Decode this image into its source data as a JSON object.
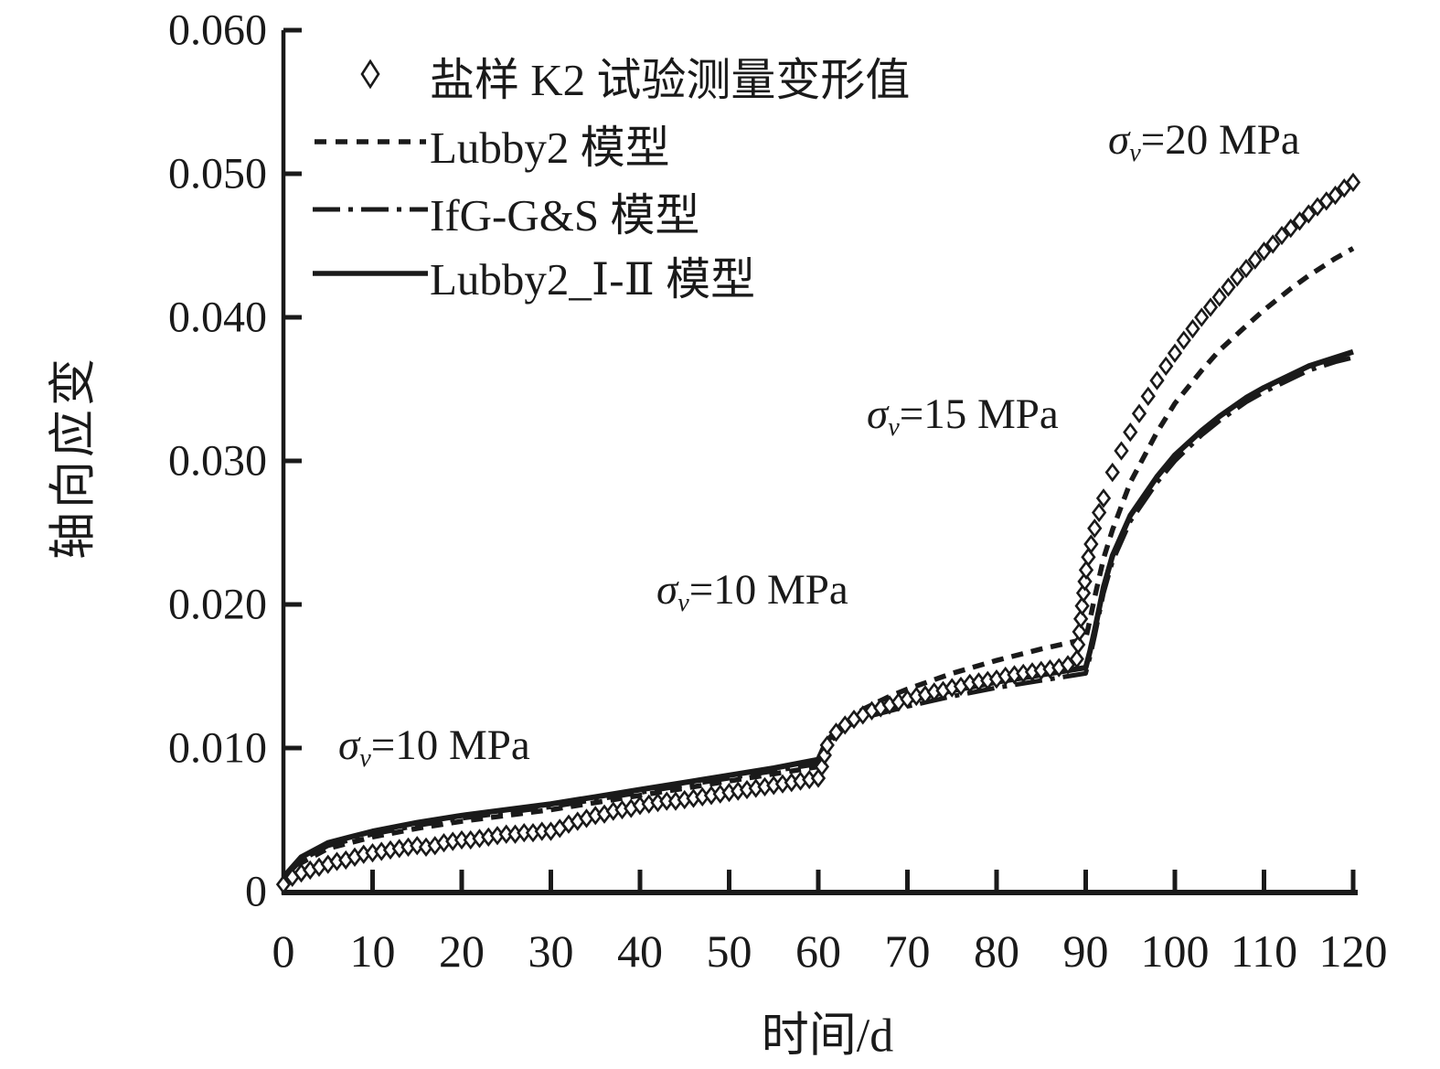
{
  "colors": {
    "ink": "#1a1a1a",
    "background": "#ffffff"
  },
  "legend": {
    "items": [
      {
        "label": "盐样 K2 试验测量变形值",
        "marker": "open-diamond"
      },
      {
        "label": "Lubby2 模型",
        "marker": "dashed-line"
      },
      {
        "label": "IfG-G&S 模型",
        "marker": "dashdot-line"
      },
      {
        "label": "Lubby2_Ⅰ-Ⅱ 模型",
        "marker": "solid-line"
      }
    ]
  },
  "annotations": [
    {
      "sigma": "σ",
      "sub": "v",
      "rest": "=10 MPa"
    },
    {
      "sigma": "σ",
      "sub": "v",
      "rest": "=10 MPa"
    },
    {
      "sigma": "σ",
      "sub": "v",
      "rest": "=15 MPa"
    },
    {
      "sigma": "σ",
      "sub": "v",
      "rest": "=20 MPa"
    }
  ],
  "chart_data": {
    "type": "line",
    "title": "",
    "xlabel": "时间/d",
    "ylabel": "轴向应变",
    "xlim": [
      0,
      120
    ],
    "ylim": [
      0,
      0.06
    ],
    "grid": false,
    "legend_position": "upper-left-inside",
    "x_ticks": [
      {
        "v": 0,
        "label": "0"
      },
      {
        "v": 10,
        "label": "10"
      },
      {
        "v": 20,
        "label": "20"
      },
      {
        "v": 30,
        "label": "30"
      },
      {
        "v": 40,
        "label": "40"
      },
      {
        "v": 50,
        "label": "50"
      },
      {
        "v": 60,
        "label": "60"
      },
      {
        "v": 70,
        "label": "70"
      },
      {
        "v": 80,
        "label": "80"
      },
      {
        "v": 90,
        "label": "90"
      },
      {
        "v": 100,
        "label": "100"
      },
      {
        "v": 110,
        "label": "110"
      },
      {
        "v": 120,
        "label": "120"
      }
    ],
    "y_ticks": [
      {
        "v": 0,
        "label": "0"
      },
      {
        "v": 0.01,
        "label": "0.010"
      },
      {
        "v": 0.02,
        "label": "0.020"
      },
      {
        "v": 0.03,
        "label": "0.030"
      },
      {
        "v": 0.04,
        "label": "0.040"
      },
      {
        "v": 0.05,
        "label": "0.050"
      },
      {
        "v": 0.06,
        "label": "0.060"
      }
    ],
    "series": [
      {
        "name": "Lubby2 模型",
        "style": "dashed",
        "marker": "none",
        "points": [
          [
            0,
            0.0008
          ],
          [
            2,
            0.002
          ],
          [
            5,
            0.003
          ],
          [
            10,
            0.0038
          ],
          [
            15,
            0.0044
          ],
          [
            20,
            0.0049
          ],
          [
            25,
            0.0053
          ],
          [
            30,
            0.0057
          ],
          [
            35,
            0.0062
          ],
          [
            40,
            0.0067
          ],
          [
            45,
            0.0072
          ],
          [
            50,
            0.0077
          ],
          [
            55,
            0.0082
          ],
          [
            60,
            0.0087
          ],
          [
            60.5,
            0.0095
          ],
          [
            61,
            0.01
          ],
          [
            62,
            0.011
          ],
          [
            63,
            0.0117
          ],
          [
            65,
            0.0127
          ],
          [
            68,
            0.0136
          ],
          [
            70,
            0.0141
          ],
          [
            75,
            0.0152
          ],
          [
            80,
            0.0161
          ],
          [
            85,
            0.0169
          ],
          [
            90,
            0.0176
          ],
          [
            90.5,
            0.019
          ],
          [
            91,
            0.0205
          ],
          [
            92,
            0.0232
          ],
          [
            93,
            0.0252
          ],
          [
            95,
            0.0285
          ],
          [
            98,
            0.032
          ],
          [
            100,
            0.034
          ],
          [
            103,
            0.0363
          ],
          [
            105,
            0.0377
          ],
          [
            108,
            0.0394
          ],
          [
            110,
            0.0405
          ],
          [
            113,
            0.042
          ],
          [
            115,
            0.0429
          ],
          [
            118,
            0.0441
          ],
          [
            120,
            0.0448
          ]
        ]
      },
      {
        "name": "IfG-G&S 模型",
        "style": "dashdot",
        "marker": "none",
        "points": [
          [
            0,
            0.0009
          ],
          [
            2,
            0.0022
          ],
          [
            5,
            0.0032
          ],
          [
            10,
            0.004
          ],
          [
            15,
            0.0046
          ],
          [
            20,
            0.0051
          ],
          [
            25,
            0.0055
          ],
          [
            30,
            0.0059
          ],
          [
            35,
            0.0064
          ],
          [
            40,
            0.0069
          ],
          [
            45,
            0.0074
          ],
          [
            50,
            0.0079
          ],
          [
            55,
            0.0084
          ],
          [
            60,
            0.0089
          ],
          [
            60.5,
            0.0096
          ],
          [
            61,
            0.0102
          ],
          [
            62,
            0.0109
          ],
          [
            63,
            0.0114
          ],
          [
            65,
            0.0121
          ],
          [
            70,
            0.0129
          ],
          [
            75,
            0.0136
          ],
          [
            80,
            0.0142
          ],
          [
            85,
            0.0147
          ],
          [
            90,
            0.0152
          ],
          [
            90.5,
            0.0164
          ],
          [
            91,
            0.0178
          ],
          [
            92,
            0.0208
          ],
          [
            93,
            0.023
          ],
          [
            95,
            0.0258
          ],
          [
            98,
            0.0285
          ],
          [
            100,
            0.03
          ],
          [
            103,
            0.0318
          ],
          [
            105,
            0.0328
          ],
          [
            108,
            0.0341
          ],
          [
            110,
            0.0348
          ],
          [
            113,
            0.0357
          ],
          [
            115,
            0.0363
          ],
          [
            118,
            0.0369
          ],
          [
            120,
            0.0372
          ]
        ]
      },
      {
        "name": "Lubby2_Ⅰ-Ⅱ 模型",
        "style": "solid",
        "marker": "none",
        "points": [
          [
            0,
            0.001
          ],
          [
            2,
            0.0024
          ],
          [
            5,
            0.0034
          ],
          [
            10,
            0.0042
          ],
          [
            15,
            0.0048
          ],
          [
            20,
            0.0053
          ],
          [
            25,
            0.0057
          ],
          [
            30,
            0.0061
          ],
          [
            35,
            0.0066
          ],
          [
            40,
            0.0071
          ],
          [
            45,
            0.0076
          ],
          [
            50,
            0.0081
          ],
          [
            55,
            0.0086
          ],
          [
            60,
            0.0092
          ],
          [
            60.5,
            0.0099
          ],
          [
            61,
            0.0105
          ],
          [
            62,
            0.0112
          ],
          [
            63,
            0.0117
          ],
          [
            65,
            0.0124
          ],
          [
            70,
            0.0133
          ],
          [
            75,
            0.014
          ],
          [
            80,
            0.0146
          ],
          [
            85,
            0.0151
          ],
          [
            90,
            0.0156
          ],
          [
            90.5,
            0.0168
          ],
          [
            91,
            0.0182
          ],
          [
            92,
            0.0212
          ],
          [
            93,
            0.0234
          ],
          [
            95,
            0.0262
          ],
          [
            98,
            0.0289
          ],
          [
            100,
            0.0304
          ],
          [
            103,
            0.0321
          ],
          [
            105,
            0.0331
          ],
          [
            108,
            0.0344
          ],
          [
            110,
            0.0351
          ],
          [
            113,
            0.036
          ],
          [
            115,
            0.0366
          ],
          [
            118,
            0.0372
          ],
          [
            120,
            0.0376
          ]
        ]
      },
      {
        "name": "盐样 K2 试验测量变形值",
        "style": "none",
        "marker": "open-diamond",
        "points": [
          [
            0,
            0.0005
          ],
          [
            1,
            0.001
          ],
          [
            2,
            0.0013
          ],
          [
            3,
            0.0015
          ],
          [
            4,
            0.0017
          ],
          [
            5,
            0.0019
          ],
          [
            6,
            0.0021
          ],
          [
            7,
            0.0022
          ],
          [
            8,
            0.0024
          ],
          [
            9,
            0.0026
          ],
          [
            10,
            0.0027
          ],
          [
            11,
            0.0028
          ],
          [
            12,
            0.0029
          ],
          [
            13,
            0.003
          ],
          [
            14,
            0.0031
          ],
          [
            15,
            0.0032
          ],
          [
            16,
            0.0031
          ],
          [
            17,
            0.0032
          ],
          [
            18,
            0.0034
          ],
          [
            19,
            0.0035
          ],
          [
            20,
            0.0036
          ],
          [
            21,
            0.0036
          ],
          [
            22,
            0.0037
          ],
          [
            23,
            0.0038
          ],
          [
            24,
            0.0039
          ],
          [
            25,
            0.004
          ],
          [
            26,
            0.004
          ],
          [
            27,
            0.0041
          ],
          [
            28,
            0.0041
          ],
          [
            29,
            0.0042
          ],
          [
            30,
            0.0042
          ],
          [
            31,
            0.0044
          ],
          [
            32,
            0.0047
          ],
          [
            33,
            0.0049
          ],
          [
            34,
            0.0051
          ],
          [
            35,
            0.0053
          ],
          [
            36,
            0.0054
          ],
          [
            37,
            0.0056
          ],
          [
            38,
            0.0057
          ],
          [
            39,
            0.0058
          ],
          [
            40,
            0.006
          ],
          [
            41,
            0.0061
          ],
          [
            42,
            0.0062
          ],
          [
            43,
            0.0063
          ],
          [
            44,
            0.0063
          ],
          [
            45,
            0.0064
          ],
          [
            46,
            0.0065
          ],
          [
            47,
            0.0066
          ],
          [
            48,
            0.0067
          ],
          [
            49,
            0.0068
          ],
          [
            50,
            0.0069
          ],
          [
            51,
            0.007
          ],
          [
            52,
            0.0071
          ],
          [
            53,
            0.0072
          ],
          [
            54,
            0.0073
          ],
          [
            55,
            0.0074
          ],
          [
            56,
            0.0075
          ],
          [
            57,
            0.0076
          ],
          [
            58,
            0.0077
          ],
          [
            59,
            0.0078
          ],
          [
            60,
            0.0079
          ],
          [
            60.4,
            0.0087
          ],
          [
            60.7,
            0.0095
          ],
          [
            61,
            0.0102
          ],
          [
            62,
            0.0111
          ],
          [
            63,
            0.0116
          ],
          [
            64,
            0.012
          ],
          [
            65,
            0.0123
          ],
          [
            66,
            0.0126
          ],
          [
            67,
            0.0128
          ],
          [
            68,
            0.013
          ],
          [
            69,
            0.0132
          ],
          [
            70,
            0.0134
          ],
          [
            71,
            0.0136
          ],
          [
            72,
            0.0137
          ],
          [
            73,
            0.0139
          ],
          [
            74,
            0.014
          ],
          [
            75,
            0.0142
          ],
          [
            76,
            0.0143
          ],
          [
            77,
            0.0145
          ],
          [
            78,
            0.0146
          ],
          [
            79,
            0.0147
          ],
          [
            80,
            0.0148
          ],
          [
            81,
            0.015
          ],
          [
            82,
            0.0151
          ],
          [
            83,
            0.0152
          ],
          [
            84,
            0.0153
          ],
          [
            85,
            0.0154
          ],
          [
            86,
            0.0155
          ],
          [
            87,
            0.0156
          ],
          [
            88,
            0.0158
          ],
          [
            89,
            0.0162
          ],
          [
            89.15,
            0.0172
          ],
          [
            89.3,
            0.0181
          ],
          [
            89.45,
            0.019
          ],
          [
            89.6,
            0.0199
          ],
          [
            89.75,
            0.0208
          ],
          [
            89.9,
            0.0216
          ],
          [
            90.05,
            0.0224
          ],
          [
            90.3,
            0.0233
          ],
          [
            90.6,
            0.0242
          ],
          [
            91,
            0.0253
          ],
          [
            91.5,
            0.0264
          ],
          [
            92,
            0.0274
          ],
          [
            93,
            0.0292
          ],
          [
            94,
            0.0307
          ],
          [
            95,
            0.032
          ],
          [
            96,
            0.0333
          ],
          [
            97,
            0.0345
          ],
          [
            98,
            0.0356
          ],
          [
            99,
            0.0366
          ],
          [
            100,
            0.0375
          ],
          [
            101,
            0.0384
          ],
          [
            102,
            0.0392
          ],
          [
            103,
            0.04
          ],
          [
            104,
            0.0407
          ],
          [
            105,
            0.0414
          ],
          [
            106,
            0.0421
          ],
          [
            107,
            0.0428
          ],
          [
            108,
            0.0434
          ],
          [
            109,
            0.044
          ],
          [
            110,
            0.0446
          ],
          [
            111,
            0.0451
          ],
          [
            112,
            0.0457
          ],
          [
            113,
            0.0462
          ],
          [
            114,
            0.0467
          ],
          [
            115,
            0.0472
          ],
          [
            116,
            0.0477
          ],
          [
            117,
            0.0481
          ],
          [
            118,
            0.0485
          ],
          [
            119,
            0.049
          ],
          [
            120,
            0.0494
          ]
        ]
      }
    ]
  }
}
